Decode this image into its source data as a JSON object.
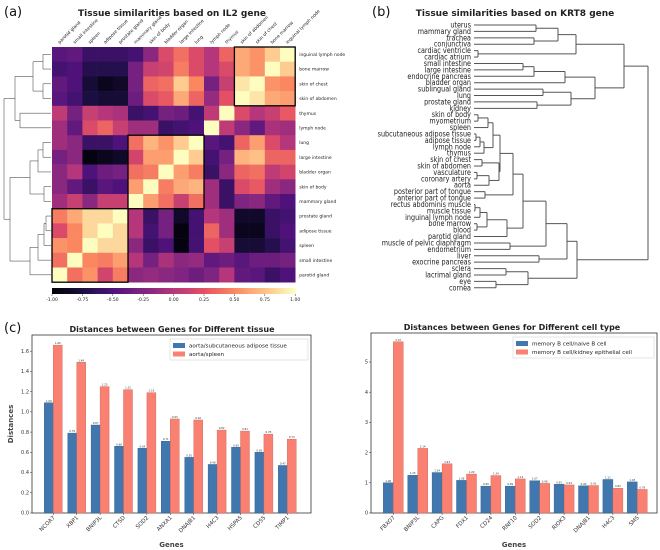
{
  "panels": {
    "a": "(a)",
    "b": "(b)",
    "c": "(c)"
  },
  "chart_data": [
    {
      "type": "heatmap",
      "title": "Tissue similarities based on IL2 gene",
      "colormap": "magma",
      "columns": [
        "parotid gland",
        "small intestine",
        "spleen",
        "adipose tissue",
        "prostate gland",
        "mammary gland",
        "skin of body",
        "bladder organ",
        "large intestine",
        "lung",
        "lymph node",
        "thymus",
        "skin of abdomen",
        "skin of chest",
        "bone marrow",
        "inguinal lymph node"
      ],
      "rows": [
        "inguinal lymph node",
        "bone marrow",
        "skin of chest",
        "skin of abdomen",
        "thymus",
        "lymph node",
        "lung",
        "large intestine",
        "bladder organ",
        "skin of body",
        "mammary gland",
        "prostate gland",
        "adipose tissue",
        "spleen",
        "small intestine",
        "parotid gland"
      ],
      "values": [
        [
          -0.45,
          -0.4,
          -0.6,
          -0.6,
          -0.6,
          -0.55,
          -0.2,
          0.2,
          0.4,
          0.2,
          0.0,
          0.35,
          0.65,
          0.55,
          0.8,
          1.0
        ],
        [
          -0.55,
          -0.5,
          -0.7,
          -0.7,
          -0.7,
          -0.3,
          0.1,
          0.15,
          0.45,
          0.2,
          0.0,
          0.2,
          0.65,
          0.55,
          1.0,
          0.8
        ],
        [
          -0.4,
          -0.5,
          -0.8,
          -0.9,
          -0.85,
          -0.3,
          0.35,
          0.4,
          0.8,
          0.5,
          -0.3,
          0.1,
          0.9,
          1.0,
          0.55,
          0.5
        ],
        [
          -0.45,
          -0.55,
          -0.75,
          -0.8,
          -0.8,
          -0.35,
          0.2,
          0.3,
          0.65,
          0.35,
          -0.15,
          0.25,
          1.0,
          0.9,
          0.65,
          0.6
        ],
        [
          0.05,
          -0.3,
          0.1,
          0.0,
          -0.05,
          -0.6,
          -0.55,
          -0.3,
          -0.35,
          -0.55,
          0.05,
          1.0,
          0.2,
          0.0,
          0.1,
          0.3
        ],
        [
          -0.1,
          -0.4,
          0.2,
          0.35,
          0.1,
          -0.1,
          -0.1,
          -0.6,
          -0.55,
          -0.5,
          1.0,
          0.05,
          -0.2,
          -0.4,
          -0.05,
          -0.1
        ],
        [
          -0.1,
          -0.2,
          -0.6,
          -0.6,
          -0.5,
          0.4,
          0.7,
          0.55,
          0.8,
          1.0,
          -0.45,
          -0.55,
          0.35,
          0.6,
          0.2,
          0.0
        ],
        [
          -0.3,
          -0.2,
          -0.95,
          -0.9,
          -0.85,
          0.15,
          0.6,
          0.6,
          1.0,
          0.8,
          -0.55,
          -0.3,
          0.7,
          0.75,
          0.35,
          0.35
        ],
        [
          -0.2,
          0.0,
          -0.5,
          -0.35,
          -0.3,
          0.4,
          0.45,
          1.0,
          0.6,
          0.45,
          -0.6,
          -0.2,
          0.35,
          0.4,
          0.05,
          0.15
        ],
        [
          -0.2,
          -0.4,
          -0.6,
          -0.45,
          -0.5,
          0.6,
          1.0,
          0.45,
          0.65,
          0.7,
          -0.1,
          -0.6,
          0.2,
          0.3,
          -0.1,
          -0.2
        ],
        [
          -0.1,
          0.1,
          -0.2,
          0.1,
          0.1,
          1.0,
          0.6,
          0.4,
          0.1,
          0.4,
          -0.1,
          -0.6,
          -0.25,
          -0.2,
          -0.4,
          -0.5
        ],
        [
          0.45,
          0.65,
          0.85,
          0.85,
          1.0,
          0.0,
          -0.6,
          -0.3,
          -0.85,
          -0.55,
          0.0,
          -0.1,
          -0.85,
          -0.85,
          -0.6,
          -0.55
        ],
        [
          0.2,
          0.5,
          0.85,
          1.0,
          0.85,
          0.0,
          -0.55,
          -0.3,
          -0.95,
          -0.55,
          0.35,
          -0.1,
          -0.9,
          -0.9,
          -0.6,
          -0.5
        ],
        [
          0.55,
          0.5,
          1.0,
          0.85,
          0.85,
          -0.2,
          -0.6,
          -0.5,
          -0.95,
          -0.55,
          0.25,
          0.1,
          -0.8,
          -0.8,
          -0.7,
          -0.55
        ],
        [
          0.4,
          1.0,
          0.5,
          0.45,
          0.6,
          0.0,
          -0.3,
          -0.05,
          -0.2,
          -0.15,
          -0.4,
          -0.35,
          -0.45,
          -0.35,
          -0.35,
          -0.3
        ],
        [
          1.0,
          0.4,
          0.55,
          0.15,
          0.45,
          -0.2,
          -0.15,
          -0.2,
          -0.25,
          -0.35,
          -0.25,
          0.0,
          -0.4,
          -0.45,
          -0.6,
          -0.5
        ]
      ],
      "clusters_highlighted": [
        [
          "skin of abdomen",
          "skin of chest",
          "bone marrow",
          "inguinal lymph node"
        ],
        [
          "mammary gland",
          "skin of body",
          "bladder organ",
          "large intestine",
          "lung"
        ],
        [
          "parotid gland",
          "small intestine",
          "spleen",
          "adipose tissue",
          "prostate gland"
        ]
      ],
      "colorbar_range": [
        -1,
        1
      ],
      "colorbar_ticks": [
        "-1.00",
        "-0.75",
        "-0.50",
        "-0.25",
        "0.00",
        "0.25",
        "0.50",
        "0.75",
        "1.00"
      ]
    },
    {
      "type": "dendrogram",
      "title": "Tissue similarities based on KRT8 gene",
      "leaves": [
        "uterus",
        "mammary gland",
        "trachea",
        "conjunctiva",
        "cardiac ventricle",
        "cardiac atrium",
        "small intestine",
        "large intestine",
        "endocrine pancreas",
        "bladder organ",
        "sublingual gland",
        "lung",
        "prostate gland",
        "kidney",
        "skin of body",
        "myometrium",
        "spleen",
        "subcutaneous adipose tissue",
        "adipose tissue",
        "lymph node",
        "thymus",
        "skin of chest",
        "skin of abdomen",
        "vasculature",
        "coronary artery",
        "aorta",
        "posterior part of tongue",
        "anterior part of tongue",
        "rectus abdominis muscle",
        "muscle tissue",
        "inguinal lymph node",
        "bone marrow",
        "blood",
        "parotid gland",
        "muscle of pelvic diaphragm",
        "endometrium",
        "liver",
        "exocrine pancreas",
        "sclera",
        "lacrimal gland",
        "eye",
        "cornea"
      ]
    },
    {
      "type": "bar",
      "title": "Distances between Genes for Different tissue",
      "xlabel": "Genes",
      "ylabel": "Distances",
      "ylim": [
        0,
        1.76
      ],
      "yticks": [
        "0.0",
        "0.2",
        "0.4",
        "0.6",
        "0.8",
        "1.0",
        "1.2",
        "1.4",
        "1.6"
      ],
      "legend_position": "top-right",
      "categories": [
        "NCOA7",
        "XBP1",
        "BNIP3L",
        "CTSD",
        "SOD2",
        "ANXA1",
        "DNAJB1",
        "H4C3",
        "HSPA5",
        "CD55",
        "TIMP1"
      ],
      "series": [
        {
          "name": "aorta/subcutaneous adipose tissue",
          "color": "#3f77ae",
          "values": [
            1.09,
            0.79,
            0.87,
            0.66,
            0.64,
            0.71,
            0.55,
            0.48,
            0.65,
            0.6,
            0.47
          ]
        },
        {
          "name": "aorta/spleen",
          "color": "#fa8072",
          "values": [
            1.66,
            1.49,
            1.25,
            1.22,
            1.19,
            0.93,
            0.92,
            0.82,
            0.81,
            0.78,
            0.73
          ]
        }
      ]
    },
    {
      "type": "bar",
      "title": "Distances between Genes for Different cell type",
      "xlabel": "Genes",
      "ylabel": "",
      "ylim": [
        0,
        5.96
      ],
      "yticks": [
        "0",
        "1",
        "2",
        "3",
        "4",
        "5"
      ],
      "legend_position": "top-right",
      "categories": [
        "FBXO7",
        "BNIP3L",
        "CAPG",
        "FDX1",
        "CD24",
        "RNF10",
        "SOD2",
        "RIOK3",
        "DNAJB1",
        "H4C3",
        "SMS"
      ],
      "series": [
        {
          "name": "memory B cell/naive B cell",
          "color": "#3f77ae",
          "values": [
            1.0,
            1.25,
            1.34,
            1.08,
            0.89,
            0.89,
            1.07,
            0.95,
            0.9,
            1.11,
            1.03
          ]
        },
        {
          "name": "memory B cell/kidney epithelial cell",
          "color": "#fa8072",
          "values": [
            5.67,
            2.14,
            1.63,
            1.29,
            1.24,
            1.13,
            0.98,
            0.93,
            0.91,
            0.82,
            0.78
          ]
        }
      ]
    }
  ]
}
